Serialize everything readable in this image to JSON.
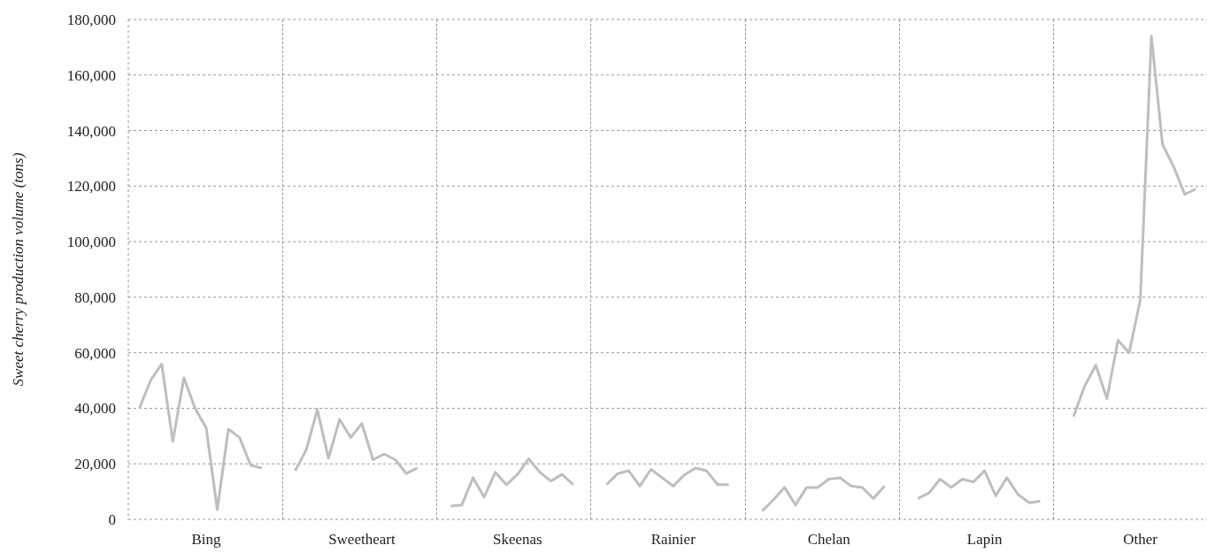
{
  "chart_data": {
    "type": "line",
    "ylabel": "Sweet cherry production volume (tons)",
    "grid": "y",
    "marker": "none",
    "line_style": "solid",
    "categories": [
      null,
      null,
      null,
      null,
      null,
      null,
      null,
      "Bing",
      null,
      null,
      null,
      null,
      null,
      null,
      null,
      null,
      null,
      null,
      null,
      null,
      null,
      "Sweetheart",
      null,
      null,
      null,
      null,
      null,
      null,
      null,
      null,
      null,
      null,
      null,
      null,
      null,
      "Skeenas",
      null,
      null,
      null,
      null,
      null,
      null,
      null,
      null,
      null,
      null,
      null,
      null,
      null,
      "Rainier",
      null,
      null,
      null,
      null,
      null,
      null,
      null,
      null,
      null,
      null,
      null,
      null,
      null,
      "Chelan",
      null,
      null,
      null,
      null,
      null,
      null,
      null,
      null,
      null,
      null,
      null,
      null,
      null,
      "Lapin",
      null,
      null,
      null,
      null,
      null,
      null,
      null,
      null,
      null,
      null,
      null,
      null,
      null,
      "Other",
      null,
      null,
      null,
      null,
      null,
      null
    ],
    "ylim": [
      0,
      180000
    ],
    "yticks": [
      {
        "value": 0,
        "label": "0"
      },
      {
        "value": 20000,
        "label": "20,000"
      },
      {
        "value": 40000,
        "label": "40,000"
      },
      {
        "value": 60000,
        "label": "60,000"
      },
      {
        "value": 80000,
        "label": "80,000"
      },
      {
        "value": 100000,
        "label": "100,000"
      },
      {
        "value": 120000,
        "label": "120,000"
      },
      {
        "value": 140000,
        "label": "140,000"
      },
      {
        "value": 160000,
        "label": "160,000"
      },
      {
        "value": 180000,
        "label": "180,000"
      }
    ],
    "series": [
      {
        "color": "#bdbec2",
        "values": [
          null,
          40000,
          50000,
          56000,
          28000,
          51000,
          40000,
          33000,
          3500,
          32500,
          29500,
          19500,
          18500,
          null,
          null,
          null,
          null,
          null,
          null,
          null,
          null,
          null,
          null,
          null,
          null,
          null,
          null,
          null,
          null,
          null,
          null,
          null,
          null,
          null,
          null,
          null,
          null,
          null,
          null,
          null,
          null,
          null,
          null,
          null,
          null,
          null,
          null,
          null,
          null,
          null,
          null,
          null,
          null,
          null,
          null,
          null,
          null,
          null,
          null,
          null,
          null,
          null,
          null,
          null,
          null,
          null,
          null,
          null,
          null,
          null,
          null,
          null,
          null,
          null,
          null,
          null,
          null,
          null,
          null,
          null,
          null,
          null,
          null,
          null,
          null,
          null,
          null,
          null,
          null,
          null,
          null,
          null,
          null,
          null,
          null,
          null,
          null,
          null
        ]
      },
      {
        "color": "#bdbec2",
        "values": [
          null,
          null,
          null,
          null,
          null,
          null,
          null,
          null,
          null,
          null,
          null,
          null,
          null,
          null,
          null,
          17500,
          25000,
          39500,
          22000,
          36000,
          29500,
          34500,
          21500,
          23500,
          21500,
          16500,
          18500,
          null,
          null,
          null,
          null,
          null,
          null,
          null,
          null,
          null,
          null,
          null,
          null,
          null,
          null,
          null,
          null,
          null,
          null,
          null,
          null,
          null,
          null,
          null,
          null,
          null,
          null,
          null,
          null,
          null,
          null,
          null,
          null,
          null,
          null,
          null,
          null,
          null,
          null,
          null,
          null,
          null,
          null,
          null,
          null,
          null,
          null,
          null,
          null,
          null,
          null,
          null,
          null,
          null,
          null,
          null,
          null,
          null,
          null,
          null,
          null,
          null,
          null,
          null,
          null,
          null,
          null,
          null,
          null,
          null,
          null,
          null
        ]
      },
      {
        "color": "#bdbec2",
        "values": [
          null,
          null,
          null,
          null,
          null,
          null,
          null,
          null,
          null,
          null,
          null,
          null,
          null,
          null,
          null,
          null,
          null,
          null,
          null,
          null,
          null,
          null,
          null,
          null,
          null,
          null,
          null,
          null,
          null,
          4800,
          5200,
          15000,
          8000,
          17000,
          12500,
          16200,
          21800,
          17000,
          13800,
          16200,
          12500,
          null,
          null,
          null,
          null,
          null,
          null,
          null,
          null,
          null,
          null,
          null,
          null,
          null,
          null,
          null,
          null,
          null,
          null,
          null,
          null,
          null,
          null,
          null,
          null,
          null,
          null,
          null,
          null,
          null,
          null,
          null,
          null,
          null,
          null,
          null,
          null,
          null,
          null,
          null,
          null,
          null,
          null,
          null,
          null,
          null,
          null,
          null,
          null,
          null,
          null,
          null,
          null,
          null,
          null,
          null,
          null,
          null
        ]
      },
      {
        "color": "#bdbec2",
        "values": [
          null,
          null,
          null,
          null,
          null,
          null,
          null,
          null,
          null,
          null,
          null,
          null,
          null,
          null,
          null,
          null,
          null,
          null,
          null,
          null,
          null,
          null,
          null,
          null,
          null,
          null,
          null,
          null,
          null,
          null,
          null,
          null,
          null,
          null,
          null,
          null,
          null,
          null,
          null,
          null,
          null,
          null,
          null,
          12500,
          16500,
          17500,
          12000,
          18000,
          15000,
          12000,
          16000,
          18500,
          17500,
          12500,
          12500,
          null,
          null,
          null,
          null,
          null,
          null,
          null,
          null,
          null,
          null,
          null,
          null,
          null,
          null,
          null,
          null,
          null,
          null,
          null,
          null,
          null,
          null,
          null,
          null,
          null,
          null,
          null,
          null,
          null,
          null,
          null,
          null,
          null,
          null,
          null,
          null,
          null,
          null,
          null,
          null,
          null,
          null,
          null
        ]
      },
      {
        "color": "#bdbec2",
        "values": [
          null,
          null,
          null,
          null,
          null,
          null,
          null,
          null,
          null,
          null,
          null,
          null,
          null,
          null,
          null,
          null,
          null,
          null,
          null,
          null,
          null,
          null,
          null,
          null,
          null,
          null,
          null,
          null,
          null,
          null,
          null,
          null,
          null,
          null,
          null,
          null,
          null,
          null,
          null,
          null,
          null,
          null,
          null,
          null,
          null,
          null,
          null,
          null,
          null,
          null,
          null,
          null,
          null,
          null,
          null,
          null,
          null,
          3000,
          7000,
          11500,
          5200,
          11500,
          11500,
          14500,
          15000,
          12000,
          11500,
          7500,
          12000,
          null,
          null,
          null,
          null,
          null,
          null,
          null,
          null,
          null,
          null,
          null,
          null,
          null,
          null,
          null,
          null,
          null,
          null,
          null,
          null,
          null,
          null,
          null,
          null,
          null,
          null,
          null,
          null,
          null
        ]
      },
      {
        "color": "#bdbec2",
        "values": [
          null,
          null,
          null,
          null,
          null,
          null,
          null,
          null,
          null,
          null,
          null,
          null,
          null,
          null,
          null,
          null,
          null,
          null,
          null,
          null,
          null,
          null,
          null,
          null,
          null,
          null,
          null,
          null,
          null,
          null,
          null,
          null,
          null,
          null,
          null,
          null,
          null,
          null,
          null,
          null,
          null,
          null,
          null,
          null,
          null,
          null,
          null,
          null,
          null,
          null,
          null,
          null,
          null,
          null,
          null,
          null,
          null,
          null,
          null,
          null,
          null,
          null,
          null,
          null,
          null,
          null,
          null,
          null,
          null,
          null,
          null,
          7500,
          9500,
          14500,
          11500,
          14500,
          13500,
          17500,
          8500,
          15000,
          9000,
          6000,
          6500,
          null,
          null,
          null,
          null,
          null,
          null,
          null,
          null,
          null,
          null,
          null,
          null,
          null,
          null,
          null
        ]
      },
      {
        "color": "#bdbec2",
        "values": [
          null,
          null,
          null,
          null,
          null,
          null,
          null,
          null,
          null,
          null,
          null,
          null,
          null,
          null,
          null,
          null,
          null,
          null,
          null,
          null,
          null,
          null,
          null,
          null,
          null,
          null,
          null,
          null,
          null,
          null,
          null,
          null,
          null,
          null,
          null,
          null,
          null,
          null,
          null,
          null,
          null,
          null,
          null,
          null,
          null,
          null,
          null,
          null,
          null,
          null,
          null,
          null,
          null,
          null,
          null,
          null,
          null,
          null,
          null,
          null,
          null,
          null,
          null,
          null,
          null,
          null,
          null,
          null,
          null,
          null,
          null,
          null,
          null,
          null,
          null,
          null,
          null,
          null,
          null,
          null,
          null,
          null,
          null,
          null,
          null,
          37000,
          48000,
          55500,
          43500,
          64500,
          60000,
          79000,
          174000,
          135000,
          127000,
          117000,
          119000,
          null
        ]
      }
    ]
  }
}
